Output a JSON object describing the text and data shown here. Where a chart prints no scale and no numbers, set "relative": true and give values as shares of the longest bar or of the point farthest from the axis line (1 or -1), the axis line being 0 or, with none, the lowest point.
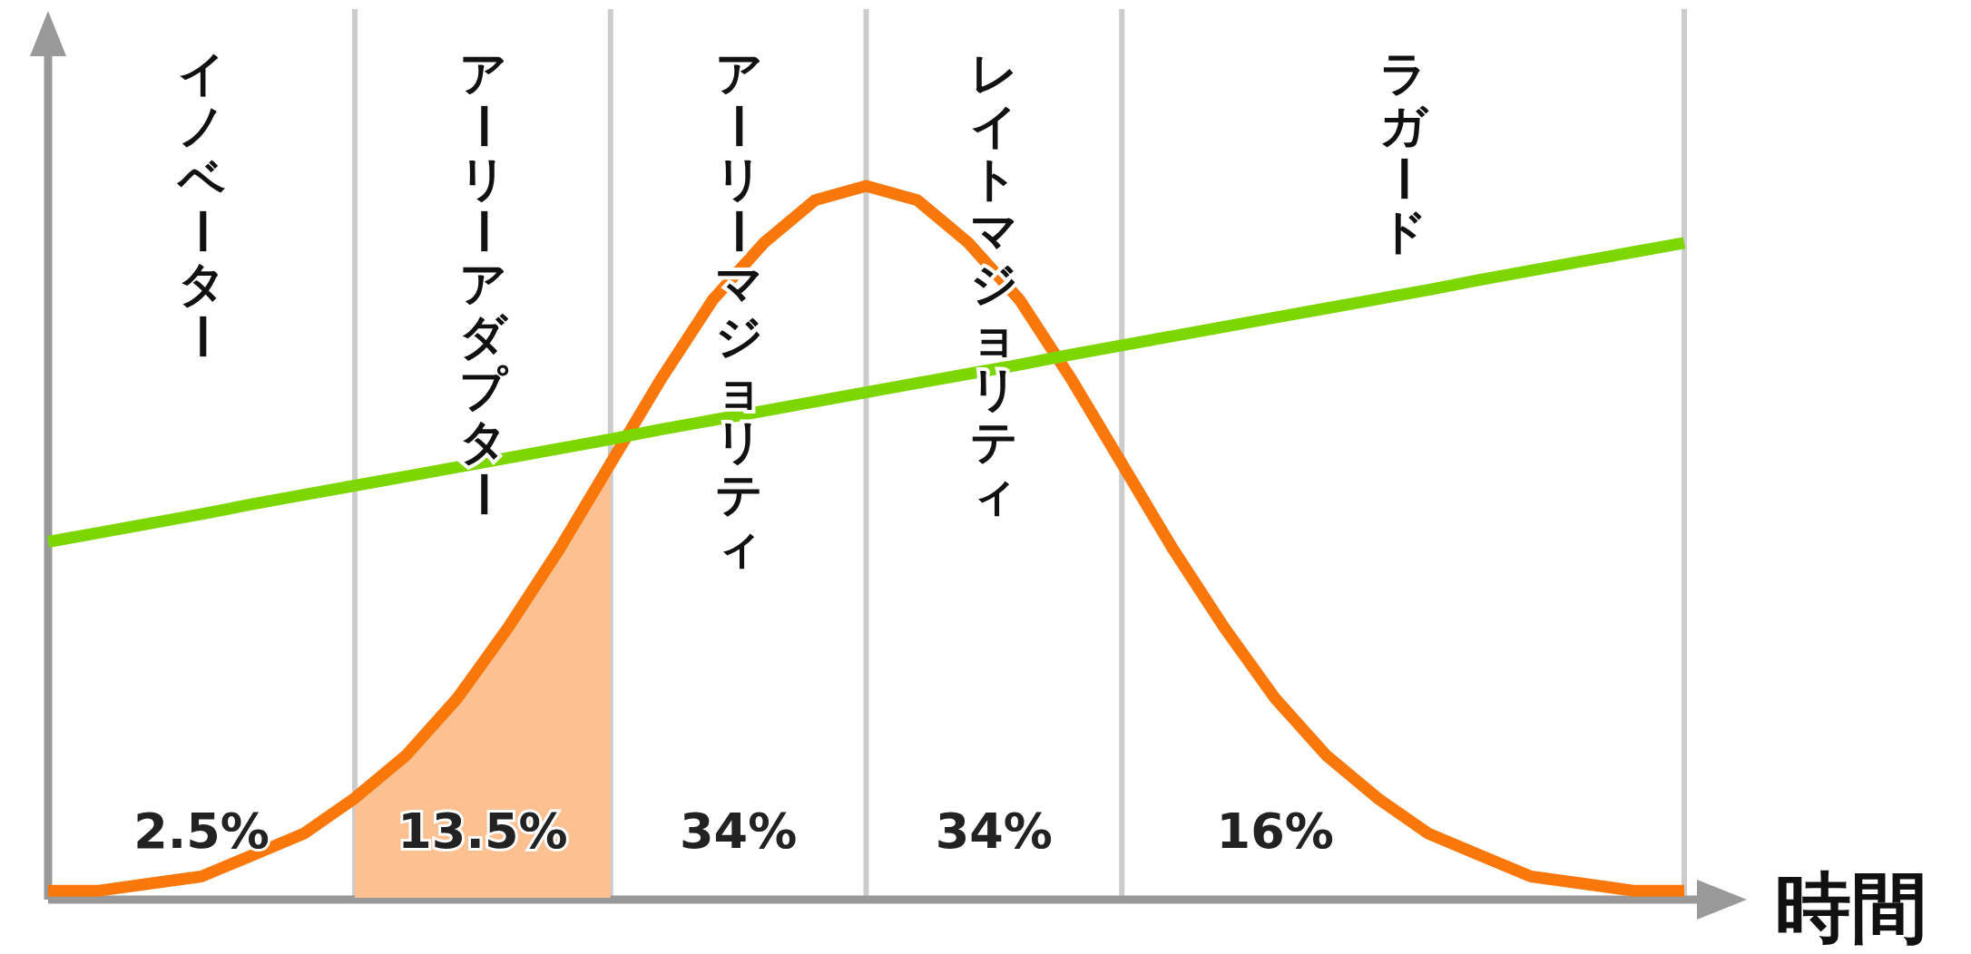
{
  "chart_data": {
    "type": "line",
    "relative": true,
    "xlabel": "時間",
    "grid": "x",
    "categories": [
      null,
      null,
      null,
      null,
      null,
      null,
      null,
      null,
      null,
      null,
      null,
      null,
      null,
      null,
      null,
      null,
      null,
      null,
      null,
      null,
      null,
      null,
      null,
      null,
      null,
      null,
      null,
      null,
      null,
      null,
      null,
      null,
      null
    ],
    "series": [
      {
        "type": "area",
        "color": "#fdc090",
        "values": [
          null,
          null,
          null,
          null,
          null,
          null,
          0.14,
          0.2,
          0.28,
          0.38,
          0.49,
          0.61,
          null,
          null,
          null,
          null,
          null,
          null,
          null,
          null,
          null,
          null,
          null,
          null,
          null,
          null,
          null,
          null,
          null,
          null,
          null,
          null,
          null
        ]
      },
      {
        "color": "#fa780a",
        "values": [
          0.01,
          0.01,
          0.02,
          0.03,
          0.06,
          0.09,
          0.14,
          0.2,
          0.28,
          0.38,
          0.49,
          0.61,
          0.73,
          0.84,
          0.92,
          0.98,
          1.0,
          0.98,
          0.92,
          0.84,
          0.73,
          0.61,
          0.49,
          0.38,
          0.28,
          0.2,
          0.14,
          0.09,
          0.06,
          0.03,
          0.02,
          0.01,
          0.01
        ]
      },
      {
        "color": "#7ed600",
        "values": [
          0.5,
          0.513,
          0.526,
          0.539,
          0.553,
          0.566,
          0.579,
          0.592,
          0.605,
          0.618,
          0.631,
          0.644,
          0.658,
          0.671,
          0.684,
          0.697,
          0.71,
          0.723,
          0.736,
          0.749,
          0.763,
          0.776,
          0.789,
          0.802,
          0.815,
          0.828,
          0.841,
          0.854,
          0.868,
          0.881,
          0.894,
          0.907,
          0.92
        ]
      }
    ],
    "annotations": [
      "イノベーター",
      "アーリーアダプター",
      "アーリーマジョリティ",
      "レイトマジョリティ",
      "ラガード",
      "2.5%",
      "13.5%",
      "34%",
      "34%",
      "16%"
    ]
  }
}
